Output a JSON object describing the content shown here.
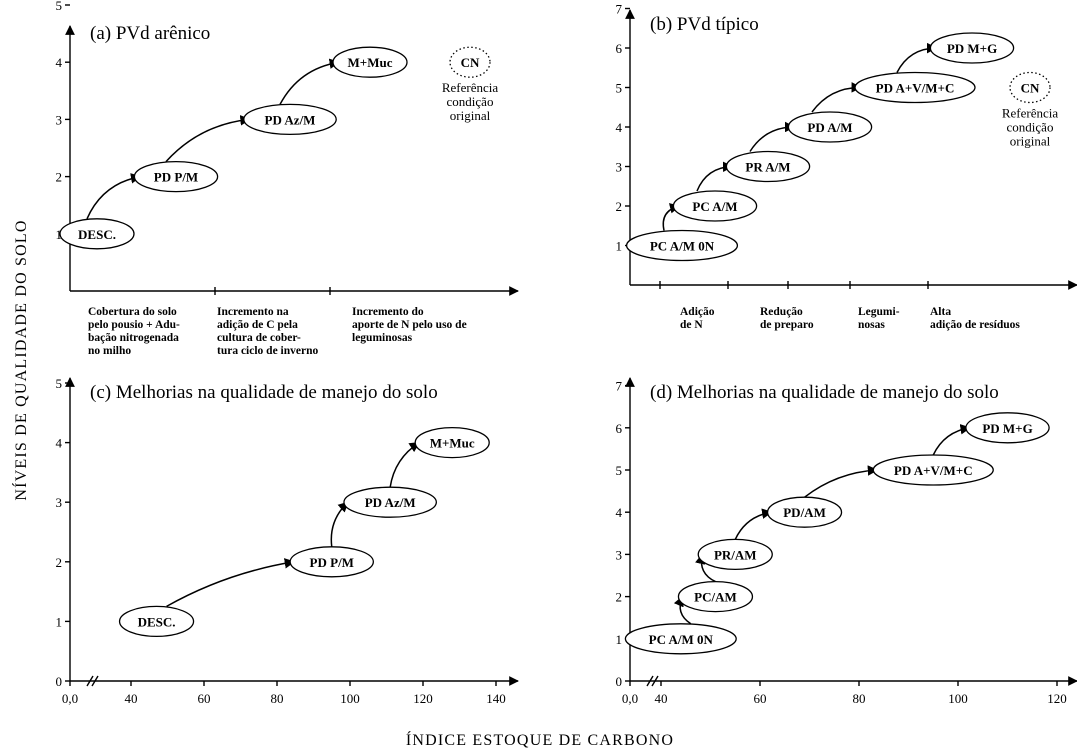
{
  "figure": {
    "y_axis_label": "NÍVEIS DE QUALIDADE DO SOLO",
    "x_axis_label": "ÍNDICE ESTOQUE DE CARBONO"
  },
  "chart_data": [
    {
      "panel": "a",
      "type": "scatter",
      "title_letter": "(a)",
      "title": "PVd arênico",
      "ylim": [
        0,
        5
      ],
      "yticks": [
        1,
        2,
        3,
        4,
        5
      ],
      "grid": false,
      "points": [
        {
          "label": "DESC.",
          "x": 0.3,
          "y": 1
        },
        {
          "label": "PD P/M",
          "x": 1.2,
          "y": 2
        },
        {
          "label": "PD Az/M",
          "x": 2.6,
          "y": 3
        },
        {
          "label": "M+Muc",
          "x": 3.6,
          "y": 4
        }
      ],
      "reference": {
        "label": "CN",
        "note": [
          "Referência",
          "condição",
          "original"
        ],
        "y": 4
      },
      "x_categories": [
        [
          "Cobertura do solo",
          "pelo pousio + Adu-",
          "bação nitrogenada",
          "no milho"
        ],
        [
          "Incremento na",
          "adição de C pela",
          "cultura de cober-",
          "tura ciclo de inverno"
        ],
        [
          "Incremento do",
          "aporte de N pelo uso de",
          "leguminosas"
        ]
      ]
    },
    {
      "panel": "b",
      "type": "scatter",
      "title_letter": "(b)",
      "title": "PVd típico",
      "ylim": [
        0,
        7
      ],
      "yticks": [
        1,
        2,
        3,
        4,
        5,
        6,
        7
      ],
      "grid": false,
      "points": [
        {
          "label": "PC A/M 0N",
          "x": 0.0,
          "y": 1
        },
        {
          "label": "PC A/M",
          "x": 0.8,
          "y": 2
        },
        {
          "label": "PR A/M",
          "x": 1.6,
          "y": 3
        },
        {
          "label": "PD A/M",
          "x": 2.6,
          "y": 4
        },
        {
          "label": "PD A+V/M+C",
          "x": 3.8,
          "y": 5
        },
        {
          "label": "PD M+G",
          "x": 4.6,
          "y": 6
        }
      ],
      "reference": {
        "label": "CN",
        "note": [
          "Referência",
          "condição",
          "original"
        ],
        "y": 5
      },
      "x_categories": [
        [
          "Adição",
          "de N"
        ],
        [
          "Redução",
          "de preparo"
        ],
        [
          "Legumi-",
          "nosas"
        ],
        [
          "Alta",
          "adição de resíduos"
        ]
      ]
    },
    {
      "panel": "c",
      "type": "scatter",
      "title_letter": "(c)",
      "title": "Melhorias na qualidade de manejo do solo",
      "xlim": [
        0,
        140
      ],
      "ylim": [
        0,
        5
      ],
      "xticks": [
        "0,0",
        "40",
        "60",
        "80",
        "100",
        "120",
        "140"
      ],
      "yticks": [
        0,
        1,
        2,
        3,
        4,
        5
      ],
      "grid": false,
      "points": [
        {
          "label": "DESC.",
          "x": 47,
          "y": 1
        },
        {
          "label": "PD P/M",
          "x": 95,
          "y": 2
        },
        {
          "label": "PD Az/M",
          "x": 111,
          "y": 3
        },
        {
          "label": "M+Muc",
          "x": 128,
          "y": 4
        }
      ]
    },
    {
      "panel": "d",
      "type": "scatter",
      "title_letter": "(d)",
      "title": "Melhorias na qualidade de manejo do solo",
      "xlim": [
        0,
        120
      ],
      "ylim": [
        0,
        7
      ],
      "xticks": [
        "0,0",
        "40",
        "60",
        "80",
        "100",
        "120"
      ],
      "yticks": [
        0,
        1,
        2,
        3,
        4,
        5,
        6,
        7
      ],
      "grid": false,
      "points": [
        {
          "label": "PC A/M 0N",
          "x": 44,
          "y": 1
        },
        {
          "label": "PC/AM",
          "x": 51,
          "y": 2
        },
        {
          "label": "PR/AM",
          "x": 55,
          "y": 3
        },
        {
          "label": "PD/AM",
          "x": 69,
          "y": 4
        },
        {
          "label": "PD A+V/M+C",
          "x": 95,
          "y": 5
        },
        {
          "label": "PD M+G",
          "x": 110,
          "y": 6
        }
      ]
    }
  ]
}
